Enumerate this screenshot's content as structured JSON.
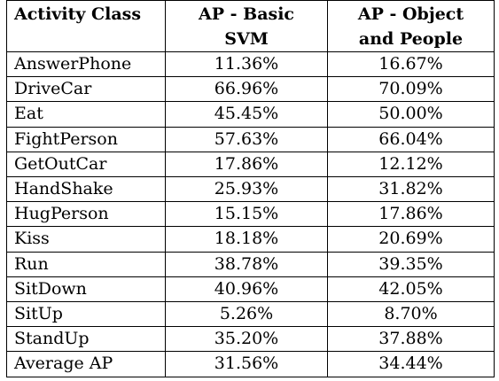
{
  "table": {
    "headers": [
      {
        "lines": [
          "Activity Class"
        ]
      },
      {
        "lines": [
          "AP - Basic",
          "SVM"
        ]
      },
      {
        "lines": [
          "AP - Object",
          "and People"
        ]
      }
    ],
    "rows": [
      [
        "AnswerPhone",
        "11.36%",
        "16.67%"
      ],
      [
        "DriveCar",
        "66.96%",
        "70.09%"
      ],
      [
        "Eat",
        "45.45%",
        "50.00%"
      ],
      [
        "FightPerson",
        "57.63%",
        "66.04%"
      ],
      [
        "GetOutCar",
        "17.86%",
        "12.12%"
      ],
      [
        "HandShake",
        "25.93%",
        "31.82%"
      ],
      [
        "HugPerson",
        "15.15%",
        "17.86%"
      ],
      [
        "Kiss",
        "18.18%",
        "20.69%"
      ],
      [
        "Run",
        "38.78%",
        "39.35%"
      ],
      [
        "SitDown",
        "40.96%",
        "42.05%"
      ],
      [
        "SitUp",
        "5.26%",
        "8.70%"
      ],
      [
        "StandUp",
        "35.20%",
        "37.88%"
      ],
      [
        "Average AP",
        "31.56%",
        "34.44%"
      ]
    ]
  }
}
